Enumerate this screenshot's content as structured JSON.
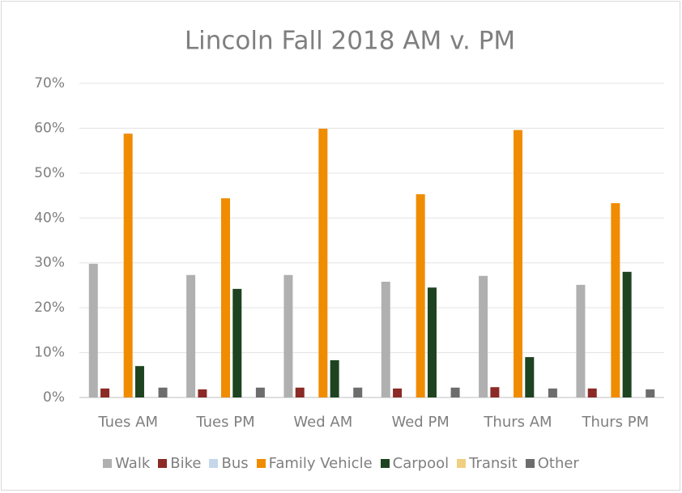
{
  "chart_data": {
    "type": "bar",
    "title": "Lincoln Fall 2018 AM v. PM",
    "categories": [
      "Tues AM",
      "Tues PM",
      "Wed AM",
      "Wed PM",
      "Thurs AM",
      "Thurs PM"
    ],
    "series": [
      {
        "name": "Walk",
        "color": "#b0b0b0",
        "values": [
          29.8,
          27.3,
          27.3,
          25.8,
          27.1,
          25.1
        ]
      },
      {
        "name": "Bike",
        "color": "#8b2a26",
        "values": [
          2.0,
          1.8,
          2.2,
          2.0,
          2.3,
          2.0
        ]
      },
      {
        "name": "Bus",
        "color": "#c5d7ea",
        "values": [
          0,
          0,
          0,
          0,
          0,
          0
        ]
      },
      {
        "name": "Family Vehicle",
        "color": "#f08c00",
        "values": [
          58.8,
          44.4,
          59.9,
          45.3,
          59.6,
          43.3
        ]
      },
      {
        "name": "Carpool",
        "color": "#1e4320",
        "values": [
          7.0,
          24.2,
          8.3,
          24.5,
          9.0,
          28.0
        ]
      },
      {
        "name": "Transit",
        "color": "#f0d080",
        "values": [
          0,
          0,
          0,
          0,
          0,
          0
        ]
      },
      {
        "name": "Other",
        "color": "#6d6d6d",
        "values": [
          2.2,
          2.2,
          2.2,
          2.2,
          2.0,
          1.8
        ]
      }
    ],
    "ylim": [
      0,
      70
    ],
    "yticks": [
      {
        "value": 0,
        "label": "0%"
      },
      {
        "value": 10,
        "label": "10%"
      },
      {
        "value": 20,
        "label": "20%"
      },
      {
        "value": 30,
        "label": "30%"
      },
      {
        "value": 40,
        "label": "40%"
      },
      {
        "value": 50,
        "label": "50%"
      },
      {
        "value": 60,
        "label": "60%"
      },
      {
        "value": 70,
        "label": "70%"
      }
    ],
    "grid": true,
    "legend": "bottom"
  }
}
